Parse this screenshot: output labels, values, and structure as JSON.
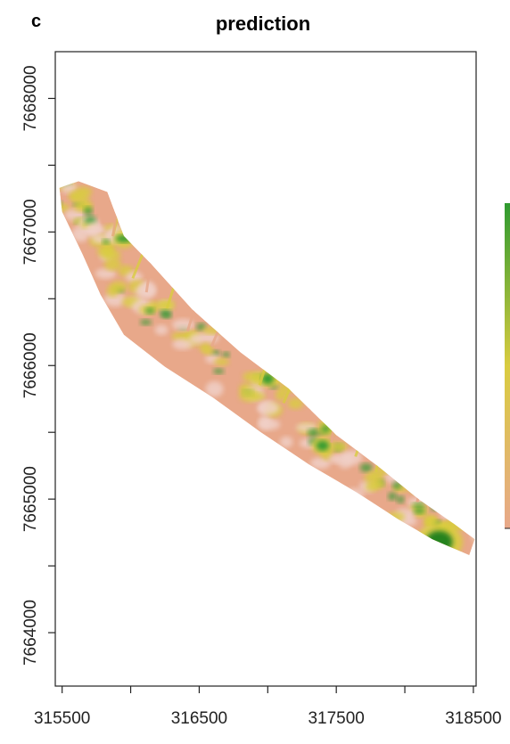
{
  "panel": {
    "letter": "c",
    "title": "prediction"
  },
  "map": {
    "x_axis": {
      "range": [
        315450,
        318520
      ],
      "ticks": [
        315500,
        316000,
        316500,
        317000,
        317500,
        318000,
        318500
      ],
      "tick_labels": [
        "315500",
        "",
        "316500",
        "",
        "317500",
        "",
        "318500"
      ]
    },
    "y_axis": {
      "range": [
        7663600,
        7668350
      ],
      "ticks": [
        7664000,
        7664500,
        7665000,
        7665500,
        7666000,
        7666500,
        7667000,
        7667500,
        7668000
      ],
      "tick_labels": [
        "7664000",
        "",
        "7665000",
        "",
        "7666000",
        "",
        "7667000",
        "",
        "7668000"
      ]
    },
    "colors": {
      "low": "#e8a88a",
      "pale": "#f0d0c8",
      "mid": "#d9cc40",
      "high": "#2f9a30",
      "peak": "#1d7f1f"
    },
    "legend": {
      "type": "color-ramp",
      "placement": "right",
      "stops": [
        "#e8a88a",
        "#d9cc40",
        "#2f9a30"
      ]
    }
  },
  "chart_data": {
    "type": "heatmap",
    "title": "prediction",
    "xlim": [
      315450,
      318520
    ],
    "ylim": [
      7663600,
      7668350
    ],
    "x_ticks": [
      315500,
      316500,
      317500,
      318500
    ],
    "y_ticks": [
      7664000,
      7665000,
      7666000,
      7667000,
      7668000
    ],
    "extent_outline": [
      [
        315480,
        7667330
      ],
      [
        315620,
        7667380
      ],
      [
        315830,
        7667300
      ],
      [
        315950,
        7666970
      ],
      [
        316150,
        7666760
      ],
      [
        316450,
        7666420
      ],
      [
        316800,
        7666100
      ],
      [
        317150,
        7665830
      ],
      [
        317500,
        7665480
      ],
      [
        317800,
        7665250
      ],
      [
        318100,
        7665000
      ],
      [
        318350,
        7664820
      ],
      [
        318510,
        7664700
      ],
      [
        318470,
        7664580
      ],
      [
        318200,
        7664700
      ],
      [
        317950,
        7664850
      ],
      [
        317650,
        7665050
      ],
      [
        317300,
        7665260
      ],
      [
        316950,
        7665500
      ],
      [
        316600,
        7665760
      ],
      [
        316250,
        7665990
      ],
      [
        315950,
        7666230
      ],
      [
        315780,
        7666530
      ],
      [
        315650,
        7666830
      ],
      [
        315500,
        7667150
      ]
    ],
    "hotspots": [
      {
        "x": 318250,
        "y": 7664680,
        "level": "peak"
      },
      {
        "x": 317000,
        "y": 7665900,
        "level": "high"
      },
      {
        "x": 317400,
        "y": 7665400,
        "level": "high"
      },
      {
        "x": 315950,
        "y": 7666950,
        "level": "high"
      }
    ],
    "legend_placement": "right",
    "grid": false
  }
}
